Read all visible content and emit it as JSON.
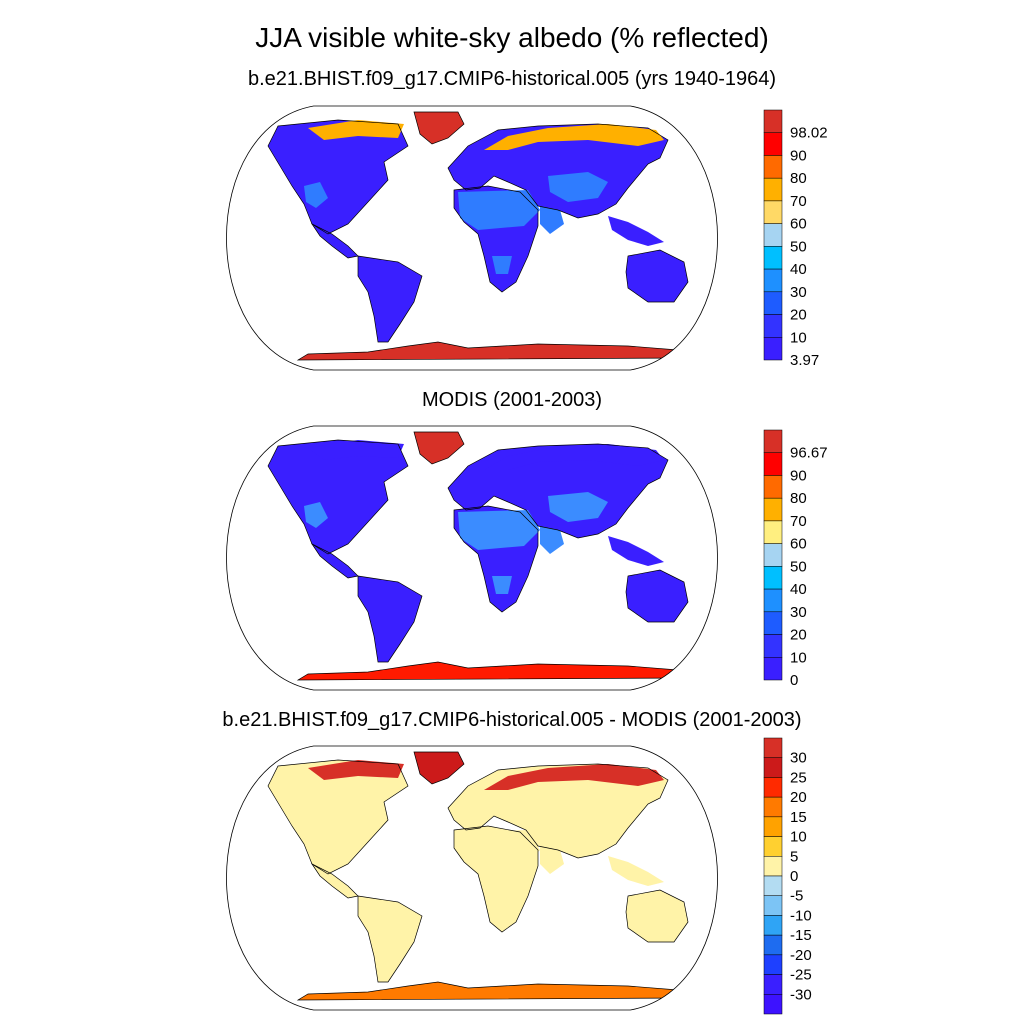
{
  "figure": {
    "title": "JJA visible white-sky albedo (% reflected)"
  },
  "panels": [
    {
      "id": "model",
      "title": "b.e21.BHIST.f09_g17.CMIP6-historical.005 (yrs 1940-1964)",
      "colorbar": {
        "labels": [
          "98.02",
          "90",
          "80",
          "70",
          "60",
          "50",
          "40",
          "30",
          "20",
          "10",
          "3.97"
        ],
        "colors_top_to_bottom": [
          "#d73027",
          "#ff0000",
          "#ff6a00",
          "#ffb000",
          "#ffd966",
          "#a6d4f2",
          "#00bfff",
          "#1e90ff",
          "#1e5cff",
          "#3333ff",
          "#3a1fff"
        ]
      },
      "regions": {
        "ocean": "#ffffff",
        "land_general": "#3a1fff",
        "deserts": "#2f7cff",
        "greenland": "#d73027",
        "antarctica": "#d73027",
        "arctic_coast": "#ffb000"
      }
    },
    {
      "id": "modis",
      "title": "MODIS (2001-2003)",
      "colorbar": {
        "labels": [
          "96.67",
          "90",
          "80",
          "70",
          "60",
          "50",
          "40",
          "30",
          "20",
          "10",
          "0"
        ],
        "colors_top_to_bottom": [
          "#d73027",
          "#ff0000",
          "#ff6a00",
          "#ffb000",
          "#ffef80",
          "#a6d4f2",
          "#00bfff",
          "#1e90ff",
          "#1e5cff",
          "#3333ff",
          "#3a1fff"
        ]
      },
      "regions": {
        "ocean": "#ffffff",
        "land_general": "#3a1fff",
        "deserts": "#3b8cff",
        "greenland": "#d73027",
        "antarctica": "#ff1a00",
        "arctic_coast": "#3a1fff"
      }
    },
    {
      "id": "diff",
      "title": "b.e21.BHIST.f09_g17.CMIP6-historical.005 - MODIS (2001-2003)",
      "colorbar": {
        "labels": [
          "30",
          "25",
          "20",
          "15",
          "10",
          "5",
          "0",
          "-5",
          "-10",
          "-15",
          "-20",
          "-25",
          "-30"
        ],
        "colors_top_to_bottom": [
          "#d73027",
          "#cc1a1a",
          "#ff2a00",
          "#ff7a00",
          "#ffa200",
          "#ffd030",
          "#fff3a8",
          "#b3dcf2",
          "#7cc4f5",
          "#2fa4f5",
          "#1e6cf0",
          "#1e40ff",
          "#3a1fff",
          "#3d12ff"
        ]
      },
      "regions": {
        "ocean": "#ffffff",
        "land_general": "#fff3a8",
        "deserts": "#fff3a8",
        "greenland": "#cc1a1a",
        "antarctica": "#ff7a00",
        "arctic_coast": "#d73027"
      }
    }
  ]
}
